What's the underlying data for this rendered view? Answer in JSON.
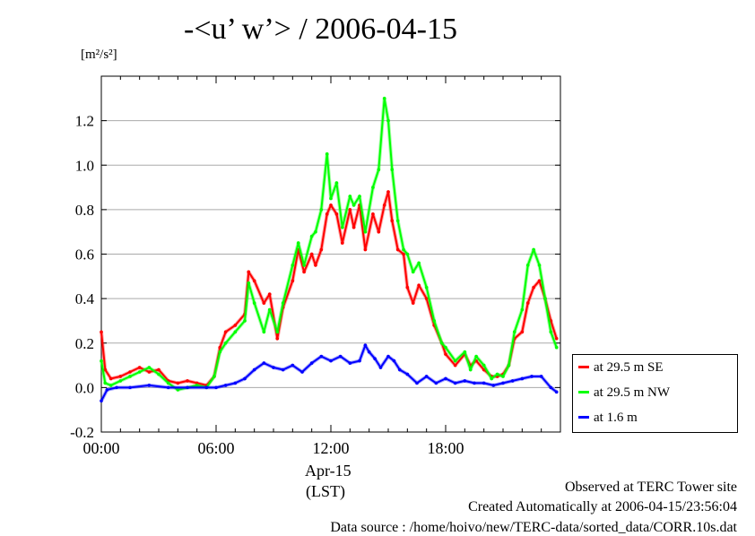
{
  "header": {
    "title": "-<u’ w’> / 2006-04-15",
    "unit_label": "[m²/s²]"
  },
  "axes": {
    "x_sublabel_date": "Apr-15",
    "x_sublabel_tz": "(LST)"
  },
  "legend": {
    "items": [
      {
        "label": "at 29.5 m SE",
        "color": "#ff0000"
      },
      {
        "label": "at 29.5 m NW",
        "color": "#00ff00"
      },
      {
        "label": "at 1.6 m",
        "color": "#0000ff"
      }
    ]
  },
  "footer": {
    "line1": "Observed at TERC Tower site",
    "line2": "Created Automatically at 2006-04-15/23:56:04",
    "line3": "Data source : /home/hoivo/new/TERC-data/sorted_data/CORR.10s.dat"
  },
  "chart_data": {
    "type": "line",
    "title": "-<u’ w’> / 2006-04-15",
    "ylabel": "[m²/s²]",
    "xlabel": "(LST)",
    "xlim": [
      0,
      24
    ],
    "ylim": [
      -0.2,
      1.4
    ],
    "x_ticks": [
      0,
      6,
      12,
      18
    ],
    "x_tick_labels": [
      "00:00",
      "06:00",
      "12:00",
      "18:00"
    ],
    "y_ticks": [
      -0.2,
      0.0,
      0.2,
      0.4,
      0.6,
      0.8,
      1.0,
      1.2
    ],
    "y_tick_labels": [
      "-0.2",
      "0.0",
      "0.2",
      "0.4",
      "0.6",
      "0.8",
      "1.0",
      "1.2"
    ],
    "grid": "horizontal",
    "legend_position": "right",
    "series": [
      {
        "name": "at 29.5 m SE",
        "color": "#ff0000",
        "x": [
          0,
          0.2,
          0.5,
          1.0,
          1.5,
          2.0,
          2.5,
          3.0,
          3.5,
          4.0,
          4.5,
          5.0,
          5.5,
          5.9,
          6.2,
          6.5,
          7.0,
          7.5,
          7.7,
          8.0,
          8.5,
          8.8,
          9.2,
          9.5,
          10.0,
          10.3,
          10.6,
          11.0,
          11.2,
          11.5,
          11.8,
          12.0,
          12.3,
          12.6,
          13.0,
          13.2,
          13.5,
          13.8,
          14.2,
          14.5,
          14.8,
          15.0,
          15.2,
          15.5,
          15.8,
          16.0,
          16.3,
          16.6,
          17.0,
          17.4,
          17.8,
          18.0,
          18.5,
          19.0,
          19.3,
          19.6,
          20.0,
          20.4,
          20.7,
          21.0,
          21.3,
          21.6,
          22.0,
          22.3,
          22.6,
          22.9,
          23.2,
          23.5,
          23.8
        ],
        "values": [
          0.25,
          0.08,
          0.04,
          0.05,
          0.07,
          0.09,
          0.07,
          0.08,
          0.03,
          0.02,
          0.03,
          0.02,
          0.01,
          0.05,
          0.18,
          0.25,
          0.28,
          0.33,
          0.52,
          0.48,
          0.38,
          0.42,
          0.22,
          0.36,
          0.48,
          0.62,
          0.52,
          0.6,
          0.55,
          0.62,
          0.78,
          0.82,
          0.78,
          0.65,
          0.8,
          0.72,
          0.82,
          0.62,
          0.78,
          0.7,
          0.82,
          0.88,
          0.75,
          0.62,
          0.6,
          0.45,
          0.38,
          0.46,
          0.4,
          0.28,
          0.2,
          0.15,
          0.1,
          0.15,
          0.1,
          0.12,
          0.08,
          0.05,
          0.05,
          0.06,
          0.1,
          0.22,
          0.25,
          0.38,
          0.45,
          0.48,
          0.4,
          0.3,
          0.22
        ]
      },
      {
        "name": "at 29.5 m NW",
        "color": "#00ff00",
        "x": [
          0,
          0.2,
          0.5,
          1.0,
          1.5,
          2.0,
          2.5,
          3.0,
          3.5,
          4.0,
          4.5,
          5.0,
          5.5,
          5.9,
          6.2,
          6.5,
          7.0,
          7.5,
          7.7,
          8.0,
          8.5,
          8.8,
          9.2,
          9.5,
          10.0,
          10.3,
          10.6,
          11.0,
          11.2,
          11.5,
          11.8,
          12.0,
          12.3,
          12.6,
          13.0,
          13.2,
          13.5,
          13.8,
          14.2,
          14.5,
          14.8,
          15.0,
          15.2,
          15.5,
          15.8,
          16.0,
          16.3,
          16.6,
          17.0,
          17.4,
          17.8,
          18.0,
          18.5,
          19.0,
          19.3,
          19.6,
          20.0,
          20.4,
          20.7,
          21.0,
          21.3,
          21.6,
          22.0,
          22.3,
          22.6,
          22.9,
          23.2,
          23.5,
          23.8
        ],
        "values": [
          0.12,
          0.02,
          0.01,
          0.03,
          0.05,
          0.07,
          0.09,
          0.06,
          0.02,
          -0.01,
          0.0,
          0.01,
          0.0,
          0.05,
          0.16,
          0.2,
          0.25,
          0.3,
          0.47,
          0.38,
          0.25,
          0.35,
          0.25,
          0.38,
          0.55,
          0.65,
          0.55,
          0.68,
          0.7,
          0.8,
          1.05,
          0.85,
          0.92,
          0.72,
          0.86,
          0.82,
          0.86,
          0.7,
          0.9,
          0.98,
          1.3,
          1.2,
          0.98,
          0.75,
          0.62,
          0.6,
          0.52,
          0.56,
          0.45,
          0.3,
          0.2,
          0.18,
          0.12,
          0.16,
          0.08,
          0.14,
          0.1,
          0.04,
          0.06,
          0.05,
          0.1,
          0.25,
          0.35,
          0.55,
          0.62,
          0.55,
          0.4,
          0.25,
          0.18
        ]
      },
      {
        "name": "at 1.6 m",
        "color": "#0000ff",
        "x": [
          0,
          0.3,
          0.8,
          1.5,
          2.5,
          3.5,
          4.5,
          5.5,
          6.0,
          6.5,
          7.0,
          7.5,
          8.0,
          8.5,
          9.0,
          9.5,
          10.0,
          10.5,
          11.0,
          11.5,
          12.0,
          12.5,
          13.0,
          13.5,
          13.8,
          14.0,
          14.3,
          14.6,
          15.0,
          15.3,
          15.6,
          16.0,
          16.5,
          17.0,
          17.5,
          18.0,
          18.5,
          19.0,
          19.5,
          20.0,
          20.5,
          21.0,
          21.5,
          22.0,
          22.5,
          23.0,
          23.5,
          23.8
        ],
        "values": [
          -0.06,
          -0.01,
          0.0,
          0.0,
          0.01,
          0.0,
          0.0,
          0.0,
          0.0,
          0.01,
          0.02,
          0.04,
          0.08,
          0.11,
          0.09,
          0.08,
          0.1,
          0.07,
          0.11,
          0.14,
          0.12,
          0.14,
          0.11,
          0.12,
          0.19,
          0.16,
          0.13,
          0.09,
          0.14,
          0.12,
          0.08,
          0.06,
          0.02,
          0.05,
          0.02,
          0.04,
          0.02,
          0.03,
          0.02,
          0.02,
          0.01,
          0.02,
          0.03,
          0.04,
          0.05,
          0.05,
          0.0,
          -0.02
        ]
      }
    ]
  }
}
